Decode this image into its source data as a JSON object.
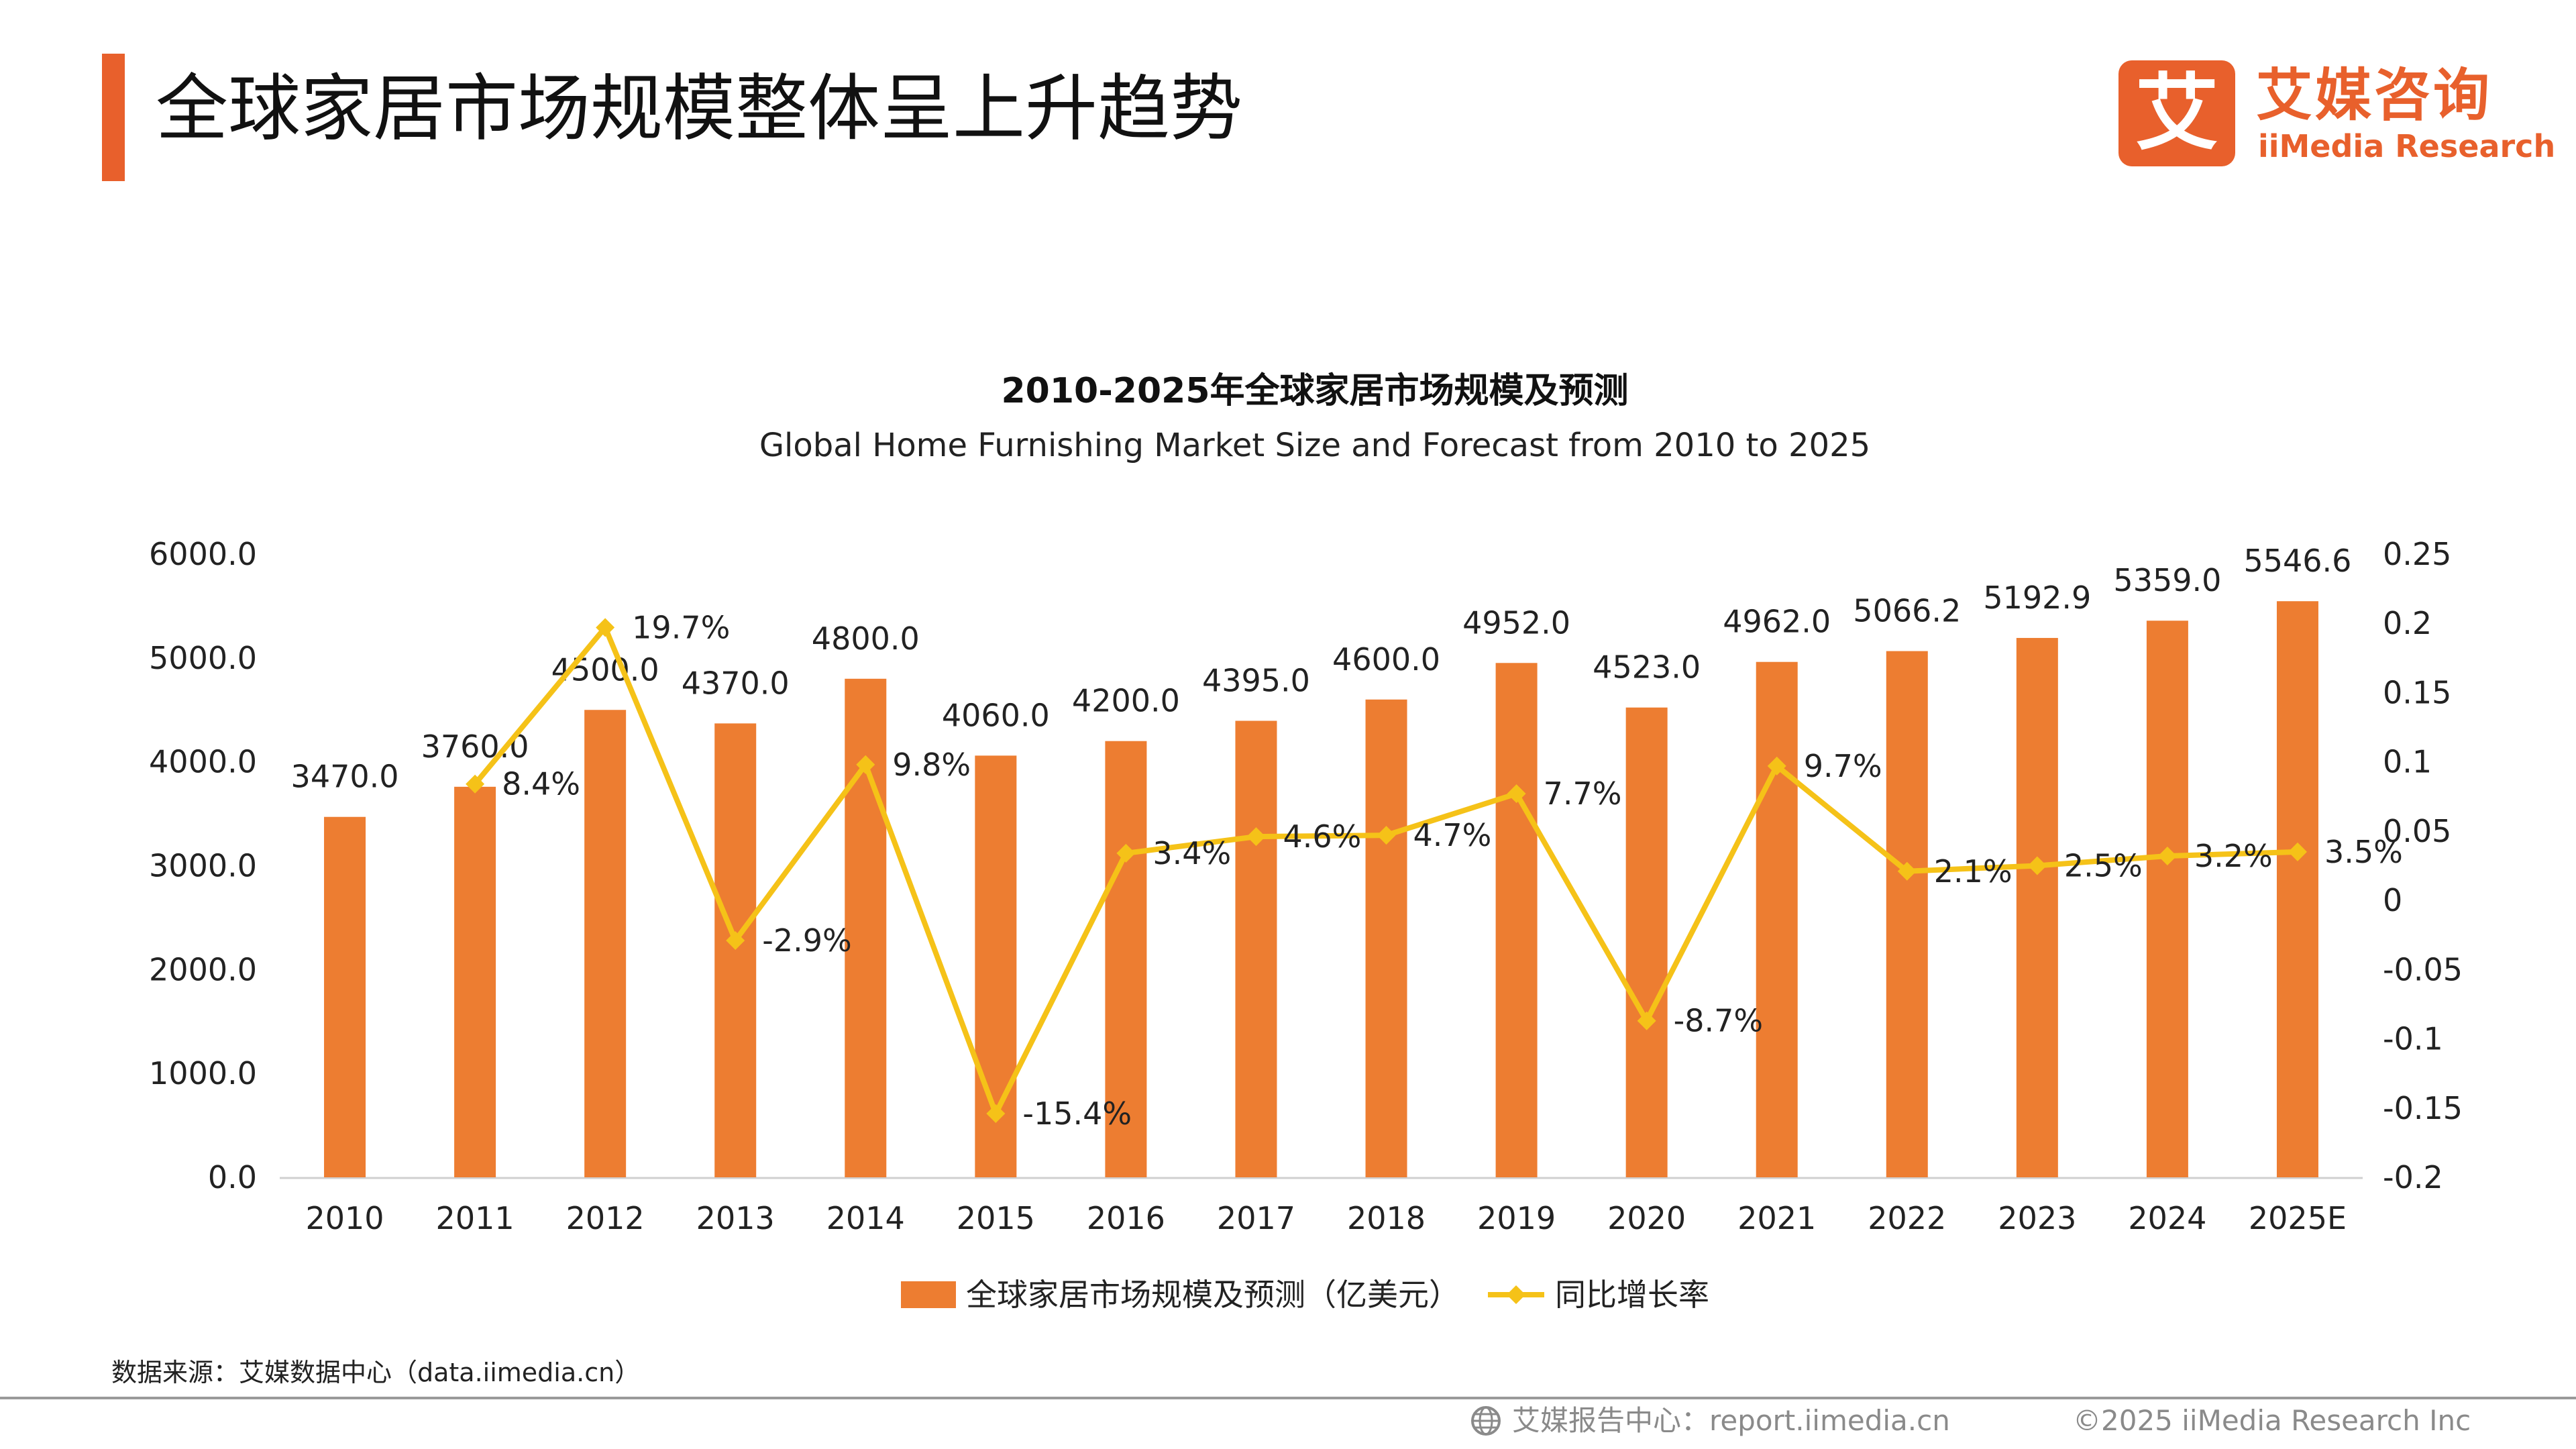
{
  "header": {
    "title": "全球家居市场规模整体呈上升趋势",
    "accent_color": "#e8602c"
  },
  "logo": {
    "badge_char": "艾",
    "cn_name": "艾媒咨询",
    "en_name": "iiMedia Research"
  },
  "chart_data": {
    "type": "bar+line",
    "title": "2010-2025年全球家居市场规模及预测",
    "subtitle": "Global Home Furnishing Market Size and Forecast from 2010 to 2025",
    "categories": [
      "2010",
      "2011",
      "2012",
      "2013",
      "2014",
      "2015",
      "2016",
      "2017",
      "2018",
      "2019",
      "2020",
      "2021",
      "2022",
      "2023",
      "2024",
      "2025E"
    ],
    "series": [
      {
        "name": "全球家居市场规模及预测（亿美元）",
        "type": "bar",
        "axis": "left",
        "color": "#ed7d31",
        "values": [
          3470.0,
          3760.0,
          4500.0,
          4370.0,
          4800.0,
          4060.0,
          4200.0,
          4395.0,
          4600.0,
          4952.0,
          4523.0,
          4962.0,
          5066.2,
          5192.9,
          5359.0,
          5546.6
        ],
        "labels": [
          "3470.0",
          "3760.0",
          "4500.0",
          "4370.0",
          "4800.0",
          "4060.0",
          "4200.0",
          "4395.0",
          "4600.0",
          "4952.0",
          "4523.0",
          "4962.0",
          "5066.2",
          "5192.9",
          "5359.0",
          "5546.6"
        ]
      },
      {
        "name": "同比增长率",
        "type": "line",
        "axis": "right",
        "color": "#f5c218",
        "values": [
          null,
          0.084,
          0.197,
          -0.029,
          0.098,
          -0.154,
          0.034,
          0.046,
          0.047,
          0.077,
          -0.087,
          0.097,
          0.021,
          0.025,
          0.032,
          0.035
        ],
        "labels": [
          null,
          "8.4%",
          "19.7%",
          "-2.9%",
          "9.8%",
          "-15.4%",
          "3.4%",
          "4.6%",
          "4.7%",
          "7.7%",
          "-8.7%",
          "9.7%",
          "2.1%",
          "2.5%",
          "3.2%",
          "3.5%"
        ]
      }
    ],
    "y_left": {
      "range": [
        0,
        6000
      ],
      "ticks": [
        0,
        1000,
        2000,
        3000,
        4000,
        5000,
        6000
      ],
      "tick_labels": [
        "0.0",
        "1000.0",
        "2000.0",
        "3000.0",
        "4000.0",
        "5000.0",
        "6000.0"
      ]
    },
    "y_right": {
      "range": [
        -0.2,
        0.25
      ],
      "ticks": [
        -0.2,
        -0.15,
        -0.1,
        -0.05,
        0,
        0.05,
        0.1,
        0.15,
        0.2,
        0.25
      ],
      "tick_labels": [
        "-0.2",
        "-0.15",
        "-0.1",
        "-0.05",
        "0",
        "0.05",
        "0.1",
        "0.15",
        "0.2",
        "0.25"
      ]
    },
    "grid": false,
    "legend_position": "bottom-center"
  },
  "source": "数据来源：艾媒数据中心（data.iimedia.cn）",
  "footer": {
    "report_site": "艾媒报告中心：report.iimedia.cn",
    "copyright": "©2025  iiMedia Research  Inc"
  }
}
